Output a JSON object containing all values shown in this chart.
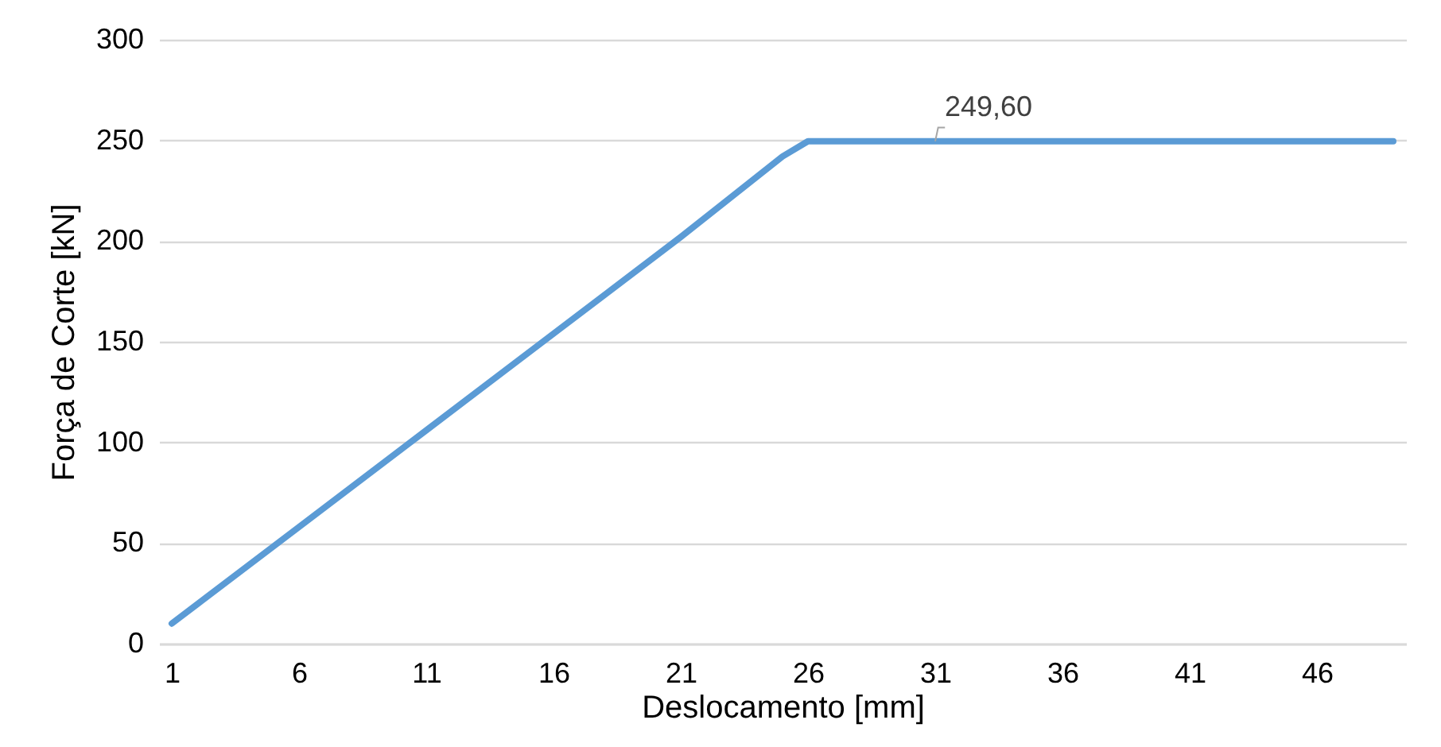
{
  "chart_data": {
    "type": "line",
    "xlabel": "Deslocamento [mm]",
    "ylabel": "Força de Corte [kN]",
    "x": [
      1,
      6,
      11,
      16,
      21,
      25,
      26,
      31,
      49
    ],
    "series": [
      {
        "color": "#5b9bd5",
        "values": [
          10,
          58,
          106,
          154,
          202,
          242,
          249.6,
          249.6,
          249.6
        ]
      }
    ],
    "xlim": [
      0.5,
      49.5
    ],
    "xticks": [
      1,
      6,
      11,
      16,
      21,
      26,
      31,
      36,
      41,
      46
    ],
    "ylim": [
      0,
      300
    ],
    "yticks": [
      0,
      50,
      100,
      150,
      200,
      250,
      300
    ],
    "grid": "y",
    "legend": false,
    "marker": "none",
    "line_style": "solid",
    "annotations": [
      {
        "text": "249,60",
        "x": 31,
        "y": 249.6
      }
    ]
  }
}
